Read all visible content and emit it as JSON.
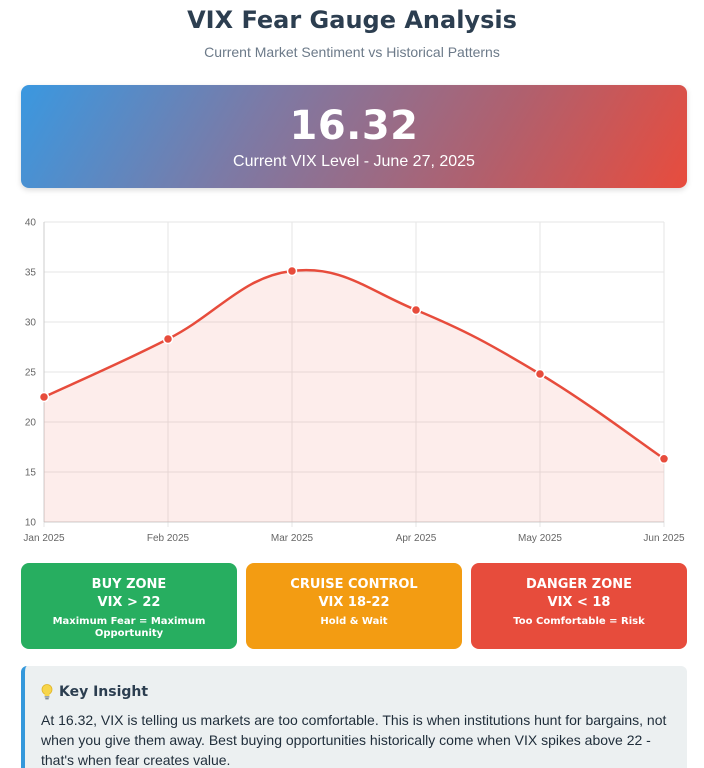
{
  "header": {
    "title": "VIX Fear Gauge Analysis",
    "subtitle": "Current Market Sentiment vs Historical Patterns"
  },
  "hero": {
    "value": "16.32",
    "label": "Current VIX Level - June 27, 2025"
  },
  "chart_data": {
    "type": "line",
    "categories": [
      "Jan 2025",
      "Feb 2025",
      "Mar 2025",
      "Apr 2025",
      "May 2025",
      "Jun 2025"
    ],
    "series": [
      {
        "values": [
          22.5,
          28.3,
          35.1,
          31.2,
          24.8,
          16.32
        ],
        "color": "#e74c3c",
        "fill": "rgba(231,76,60,0.10)"
      }
    ],
    "ylim": [
      10,
      40
    ],
    "yticks": [
      10,
      15,
      20,
      25,
      30,
      35,
      40
    ],
    "grid": true,
    "legend": "none",
    "xlabel": "",
    "ylabel": ""
  },
  "zones": [
    {
      "title": "BUY ZONE",
      "condition": "VIX > 22",
      "description": "Maximum Fear = Maximum Opportunity",
      "color": "#27ae60"
    },
    {
      "title": "CRUISE CONTROL",
      "condition": "VIX 18-22",
      "description": "Hold & Wait",
      "color": "#f39c12"
    },
    {
      "title": "DANGER ZONE",
      "condition": "VIX < 18",
      "description": "Too Comfortable = Risk",
      "color": "#e74c3c"
    }
  ],
  "insight": {
    "icon": "lightbulb-icon",
    "title": "Key Insight",
    "text": "At 16.32, VIX is telling us markets are too comfortable. This is when institutions hunt for bargains, not when you give them away. Best buying opportunities historically come when VIX spikes above 22 - that's when fear creates value."
  }
}
